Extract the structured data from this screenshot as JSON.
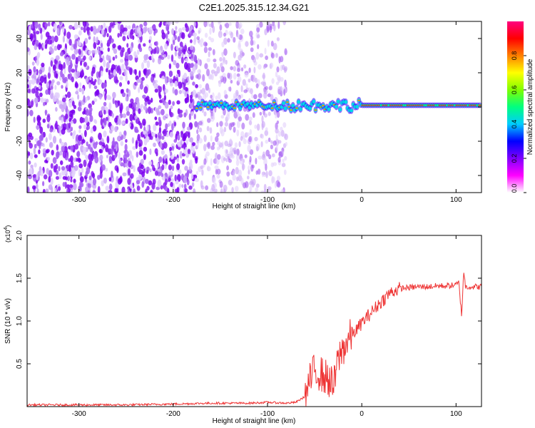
{
  "title": "C2E1.2025.315.12.34.G21",
  "chart_data": [
    {
      "type": "heatmap",
      "xlabel": "Height of straight line (km)",
      "ylabel": "Frequency (Hz)",
      "xlim": [
        -355,
        127
      ],
      "ylim": [
        -50,
        50
      ],
      "xticks": [
        -300,
        -200,
        -100,
        0,
        100
      ],
      "yticks": [
        -40,
        -20,
        0,
        20,
        40
      ],
      "colorbar": {
        "label": "Normalized spectral amplitude",
        "range": [
          0,
          1
        ],
        "ticks": [
          "0.0",
          "0.2",
          "0.4",
          "0.6",
          "0.8"
        ],
        "colors": [
          "#ffffff",
          "#ff00ff",
          "#8000ff",
          "#0000ff",
          "#00ccff",
          "#00ff80",
          "#80ff00",
          "#ffff00",
          "#ff8000",
          "#ff0000",
          "#ff0080"
        ]
      },
      "regions": [
        {
          "name": "noise-dense",
          "x_range": [
            -355,
            -175
          ],
          "freq_range": [
            -50,
            50
          ]
        },
        {
          "name": "noise-sparse",
          "x_range": [
            -175,
            -80
          ],
          "freq_range": [
            -50,
            50
          ]
        },
        {
          "name": "signal-trace",
          "x_range": [
            -175,
            127
          ],
          "freq_center": 1
        }
      ],
      "grid": false
    },
    {
      "type": "line",
      "xlabel": "Height of straight line (km)",
      "ylabel": "SNR (10 * v/v)",
      "yscale_label": "(x10",
      "yscale_exp": "4",
      "yscale_close": ")",
      "xlim": [
        -355,
        127
      ],
      "ylim": [
        0,
        2.0
      ],
      "xticks": [
        -300,
        -200,
        -100,
        0,
        100
      ],
      "yticks": [
        "0.5",
        "1.0",
        "1.5",
        "2.0"
      ],
      "line_color": "#ee3333",
      "series": [
        {
          "x": [
            -355,
            -300,
            -250,
            -200,
            -160,
            -120,
            -100,
            -80,
            -70,
            -60,
            -55,
            -50,
            -45,
            -40,
            -35,
            -30,
            -25,
            -20,
            -15,
            -10,
            -5,
            0,
            10,
            20,
            30,
            40,
            50,
            60,
            70,
            80,
            90,
            100,
            103,
            106,
            108,
            110,
            115,
            127
          ],
          "y": [
            0.02,
            0.02,
            0.02,
            0.03,
            0.04,
            0.04,
            0.05,
            0.04,
            0.05,
            0.12,
            0.3,
            0.42,
            0.4,
            0.35,
            0.32,
            0.22,
            0.55,
            0.68,
            0.76,
            0.85,
            0.9,
            0.98,
            1.1,
            1.22,
            1.33,
            1.38,
            1.39,
            1.4,
            1.4,
            1.41,
            1.41,
            1.42,
            1.45,
            1.05,
            1.6,
            1.4,
            1.4,
            1.4
          ]
        }
      ],
      "grid": false
    }
  ]
}
